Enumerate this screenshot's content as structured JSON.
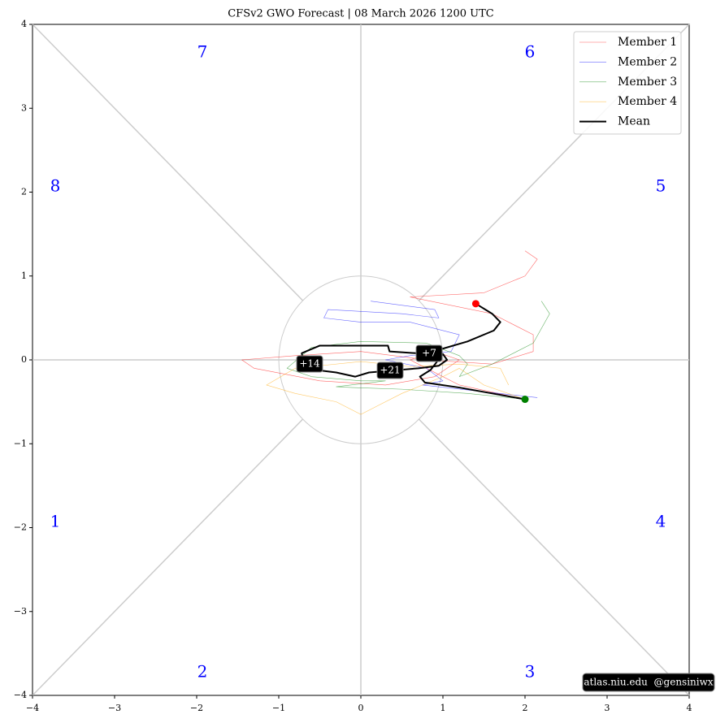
{
  "chart_data": {
    "type": "phase",
    "title": "CFSv2 GWO Forecast  |  08  March  2026 1200 UTC",
    "xlim": [
      -4,
      4
    ],
    "ylim": [
      -4,
      4
    ],
    "xticks": [
      {
        "value": -4,
        "label": "−4"
      },
      {
        "value": -3,
        "label": "−3"
      },
      {
        "value": -2,
        "label": "−2"
      },
      {
        "value": -1,
        "label": "−1"
      },
      0,
      1,
      2,
      3,
      4
    ],
    "yticks": [
      {
        "value": -4,
        "label": "−4"
      },
      {
        "value": -3,
        "label": "−3"
      },
      {
        "value": -2,
        "label": "−2"
      },
      {
        "value": -1,
        "label": "−1"
      },
      0,
      1,
      2,
      3,
      4
    ],
    "phase_labels": [
      "1",
      "2",
      "3",
      "4",
      "5",
      "6",
      "7",
      "8"
    ],
    "legend": "upper right",
    "series": [
      {
        "name": "Member 1",
        "color": "#ff0000",
        "x": [
          2.0,
          2.15,
          2.0,
          1.5,
          0.6,
          1.6,
          2.1,
          2.1,
          1.6,
          0.8,
          0.0,
          -0.8,
          -1.45,
          -1.3,
          -0.5,
          0.3,
          0.9,
          1.2,
          0.9,
          0.6,
          1.2,
          2.0
        ],
        "y": [
          1.3,
          1.2,
          1.0,
          0.8,
          0.75,
          0.55,
          0.3,
          0.1,
          -0.05,
          0.0,
          0.1,
          0.05,
          0.0,
          -0.1,
          -0.25,
          -0.3,
          -0.2,
          0.0,
          0.1,
          0.0,
          -0.3,
          -0.47
        ]
      },
      {
        "name": "Member 2",
        "color": "#0000ff",
        "x": [
          0.12,
          0.9,
          0.95,
          0.5,
          -0.4,
          -0.45,
          0.0,
          0.6,
          1.2,
          1.1,
          0.6,
          0.3,
          0.8,
          1.0,
          0.75,
          2.15
        ],
        "y": [
          0.7,
          0.6,
          0.5,
          0.55,
          0.6,
          0.5,
          0.45,
          0.45,
          0.3,
          0.1,
          0.05,
          0.0,
          -0.1,
          -0.25,
          -0.3,
          -0.45
        ]
      },
      {
        "name": "Member 3",
        "color": "#008000",
        "x": [
          2.2,
          2.3,
          2.1,
          1.6,
          1.2,
          1.3,
          1.2,
          0.8,
          0.0,
          -0.6,
          -0.9,
          -0.6,
          0.0,
          0.3,
          -0.3,
          -0.1,
          0.5,
          1.3,
          2.0
        ],
        "y": [
          0.7,
          0.55,
          0.2,
          -0.05,
          -0.2,
          -0.05,
          0.05,
          0.2,
          0.22,
          0.15,
          -0.1,
          -0.2,
          -0.25,
          -0.25,
          -0.32,
          -0.33,
          -0.35,
          -0.4,
          -0.47
        ]
      },
      {
        "name": "Member 4",
        "color": "#ffa500",
        "x": [
          1.8,
          1.7,
          1.2,
          0.6,
          0.0,
          -0.8,
          -1.15,
          -0.8,
          -0.3,
          0.0,
          0.2,
          0.5,
          1.0,
          1.2,
          1.5,
          2.0
        ],
        "y": [
          -0.3,
          -0.1,
          -0.05,
          -0.08,
          -0.02,
          -0.1,
          -0.3,
          -0.4,
          -0.5,
          -0.65,
          -0.55,
          -0.4,
          -0.2,
          -0.1,
          -0.3,
          -0.47
        ]
      },
      {
        "name": "Mean",
        "color": "#000000",
        "x": [
          1.4,
          1.6,
          1.7,
          1.62,
          1.3,
          0.95,
          0.83,
          0.35,
          0.33,
          0.0,
          -0.5,
          -0.72,
          -0.7,
          -0.55,
          -0.3,
          -0.07,
          0.1,
          0.35,
          0.7,
          0.95,
          1.05,
          1.0,
          0.85,
          0.72,
          0.78,
          1.2,
          1.6,
          2.0
        ],
        "y": [
          0.67,
          0.55,
          0.45,
          0.35,
          0.22,
          0.12,
          0.07,
          0.1,
          0.17,
          0.17,
          0.17,
          0.08,
          -0.03,
          -0.12,
          -0.15,
          -0.2,
          -0.15,
          -0.13,
          -0.1,
          -0.07,
          0.0,
          0.07,
          -0.12,
          -0.2,
          -0.27,
          -0.33,
          -0.4,
          -0.47
        ]
      }
    ],
    "start_color": "#ff0000",
    "end_color": "#008000",
    "annotations": [
      "+7",
      "+14",
      "+21"
    ],
    "watermark": "atlas.niu.edu  @gensiniwx"
  }
}
